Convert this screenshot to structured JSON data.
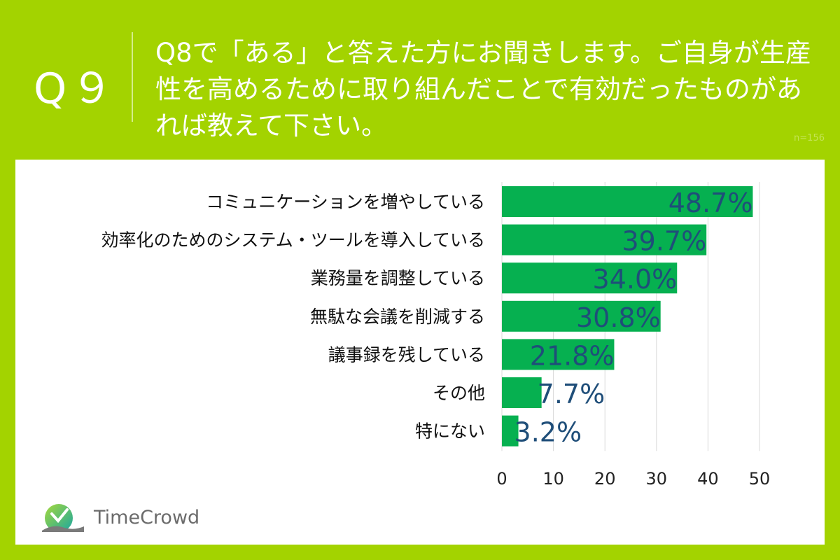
{
  "header": {
    "q_label": "Q９",
    "question": "Q8で「ある」と答えた方にお聞きします。ご自身が生産性を高めるために取り組んだことで有効だったものがあれば教えて下さい。",
    "n": "n=156"
  },
  "brand": {
    "name": "TimeCrowd",
    "bg_color": "#a3d300",
    "bar_color": "#06b050",
    "value_label_color": "#1f4e79"
  },
  "chart_data": {
    "type": "bar",
    "orientation": "horizontal",
    "categories": [
      "コミュニケーションを増やしている",
      "効率化のためのシステム・ツールを導入している",
      "業務量を調整している",
      "無駄な会議を削減する",
      "議事録を残している",
      "その他",
      "特にない"
    ],
    "values": [
      48.7,
      39.7,
      34.0,
      30.8,
      21.8,
      7.7,
      3.2
    ],
    "value_labels": [
      "48.7%",
      "39.7%",
      "34.0%",
      "30.8%",
      "21.8%",
      "7.7%",
      "3.2%"
    ],
    "xlim": [
      0,
      50
    ],
    "xticks": [
      "0",
      "10",
      "20",
      "30",
      "40",
      "50"
    ],
    "grid": true,
    "legend": "none"
  }
}
